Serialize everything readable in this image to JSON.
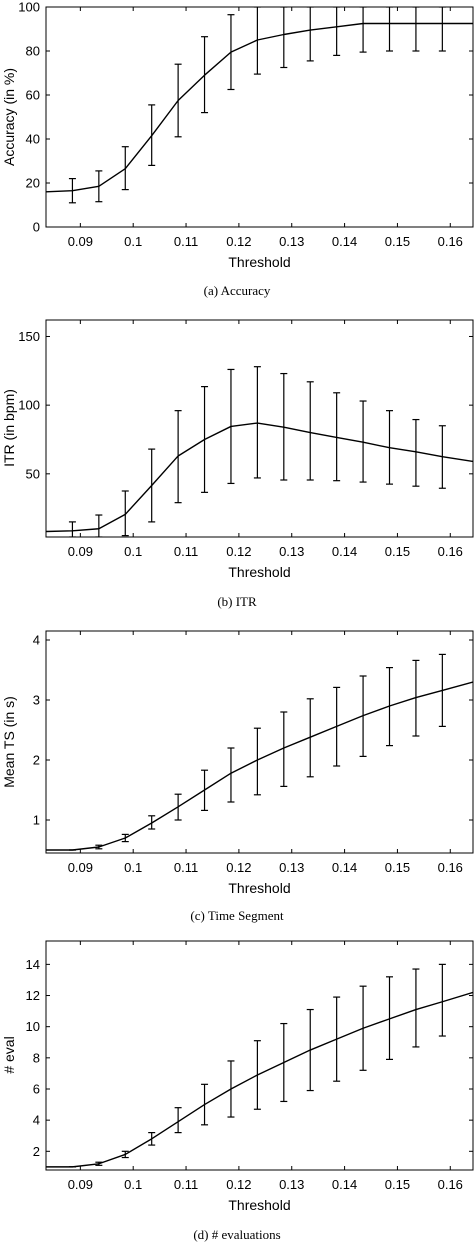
{
  "chart_data": [
    {
      "type": "line",
      "caption": "(a)  Accuracy",
      "xlabel": "Threshold",
      "ylabel": "Accuracy (in %)",
      "xlim": [
        0.0835,
        0.1643
      ],
      "ylim": [
        0,
        100
      ],
      "xticks": [
        0.09,
        0.1,
        0.11,
        0.12,
        0.13,
        0.14,
        0.15,
        0.16
      ],
      "xtick_labels": [
        "0.09",
        "0.1",
        "0.11",
        "0.12",
        "0.13",
        "0.14",
        "0.15",
        "0.16"
      ],
      "yticks": [
        0,
        20,
        40,
        60,
        80,
        100
      ],
      "ytick_labels": [
        "0",
        "20",
        "40",
        "60",
        "80",
        "100"
      ],
      "series": [
        {
          "x": [
            0.0835,
            0.0885,
            0.0935,
            0.0985,
            0.1035,
            0.1085,
            0.1135,
            0.1185,
            0.1235,
            0.1285,
            0.1335,
            0.1385,
            0.1435,
            0.1485,
            0.1535,
            0.1585,
            0.1643
          ],
          "y": [
            16,
            16.5,
            18.5,
            26.5,
            41.5,
            57.5,
            69,
            79.5,
            85,
            87.5,
            89.5,
            91,
            92.5,
            92.5,
            92.5,
            92.5,
            92.5
          ]
        }
      ],
      "error_bars": {
        "x": [
          0.0885,
          0.0935,
          0.0985,
          0.1035,
          0.1085,
          0.1135,
          0.1185,
          0.1235,
          0.1285,
          0.1335,
          0.1385,
          0.1435,
          0.1485,
          0.1535,
          0.1585
        ],
        "low": [
          11,
          11.5,
          17,
          28,
          41,
          52,
          62.5,
          69.5,
          72.5,
          75.5,
          78,
          79.5,
          80,
          80,
          80
        ],
        "high": [
          22,
          25.5,
          36.5,
          55.5,
          74,
          86.5,
          96.5,
          100,
          100,
          100,
          100,
          100,
          100,
          100,
          100
        ]
      }
    },
    {
      "type": "line",
      "caption": "(b)  ITR",
      "xlabel": "Threshold",
      "ylabel": "ITR (in bpm)",
      "xlim": [
        0.0835,
        0.1643
      ],
      "ylim": [
        4,
        162
      ],
      "xticks": [
        0.09,
        0.1,
        0.11,
        0.12,
        0.13,
        0.14,
        0.15,
        0.16
      ],
      "xtick_labels": [
        "0.09",
        "0.1",
        "0.11",
        "0.12",
        "0.13",
        "0.14",
        "0.15",
        "0.16"
      ],
      "yticks": [
        50,
        100,
        150
      ],
      "ytick_labels": [
        "50",
        "100",
        "150"
      ],
      "series": [
        {
          "x": [
            0.0835,
            0.0885,
            0.0935,
            0.0985,
            0.1035,
            0.1085,
            0.1135,
            0.1185,
            0.1235,
            0.1285,
            0.1335,
            0.1385,
            0.1435,
            0.1485,
            0.1535,
            0.1585,
            0.1643
          ],
          "y": [
            8,
            8.5,
            10,
            20.5,
            41.5,
            63,
            75,
            84.5,
            87,
            84,
            80,
            76.5,
            73,
            69,
            66,
            62.5,
            59
          ]
        }
      ],
      "error_bars": {
        "x": [
          0.0885,
          0.0935,
          0.0985,
          0.1035,
          0.1085,
          0.1135,
          0.1185,
          0.1235,
          0.1285,
          0.1335,
          0.1385,
          0.1435,
          0.1485,
          0.1535,
          0.1585
        ],
        "low": [
          4,
          4,
          5,
          15,
          29,
          36.5,
          43,
          47,
          45.5,
          45.5,
          45,
          44,
          42.5,
          41,
          39.5
        ],
        "high": [
          15,
          20,
          37.5,
          68,
          96,
          113.5,
          126,
          128,
          123,
          117,
          109,
          103,
          96,
          89.5,
          85
        ]
      }
    },
    {
      "type": "line",
      "caption": "(c)  Time Segment",
      "xlabel": "Threshold",
      "ylabel": "Mean TS (in s)",
      "xlim": [
        0.0835,
        0.1643
      ],
      "ylim": [
        0.45,
        4.15
      ],
      "xticks": [
        0.09,
        0.1,
        0.11,
        0.12,
        0.13,
        0.14,
        0.15,
        0.16
      ],
      "xtick_labels": [
        "0.09",
        "0.1",
        "0.11",
        "0.12",
        "0.13",
        "0.14",
        "0.15",
        "0.16"
      ],
      "yticks": [
        1,
        2,
        3,
        4
      ],
      "ytick_labels": [
        "1",
        "2",
        "3",
        "4"
      ],
      "series": [
        {
          "x": [
            0.0835,
            0.0885,
            0.0935,
            0.0985,
            0.1035,
            0.1085,
            0.1135,
            0.1185,
            0.1235,
            0.1285,
            0.1335,
            0.1385,
            0.1435,
            0.1485,
            0.1535,
            0.1585,
            0.1643
          ],
          "y": [
            0.5,
            0.5,
            0.55,
            0.7,
            0.95,
            1.22,
            1.5,
            1.78,
            2.0,
            2.2,
            2.38,
            2.56,
            2.74,
            2.9,
            3.04,
            3.16,
            3.3
          ]
        }
      ],
      "error_bars": {
        "x": [
          0.0885,
          0.0935,
          0.0985,
          0.1035,
          0.1085,
          0.1135,
          0.1185,
          0.1235,
          0.1285,
          0.1335,
          0.1385,
          0.1435,
          0.1485,
          0.1535,
          0.1585
        ],
        "low": [
          0.5,
          0.52,
          0.64,
          0.85,
          1.0,
          1.16,
          1.3,
          1.42,
          1.56,
          1.72,
          1.9,
          2.06,
          2.24,
          2.4,
          2.56
        ],
        "high": [
          0.5,
          0.58,
          0.76,
          1.07,
          1.43,
          1.83,
          2.2,
          2.53,
          2.8,
          3.02,
          3.21,
          3.4,
          3.54,
          3.66,
          3.76
        ]
      }
    },
    {
      "type": "line",
      "caption": "(d)  # evaluations",
      "xlabel": "Threshold",
      "ylabel": "# eval",
      "xlim": [
        0.0835,
        0.1643
      ],
      "ylim": [
        0.8,
        15.5
      ],
      "xticks": [
        0.09,
        0.1,
        0.11,
        0.12,
        0.13,
        0.14,
        0.15,
        0.16
      ],
      "xtick_labels": [
        "0.09",
        "0.1",
        "0.11",
        "0.12",
        "0.13",
        "0.14",
        "0.15",
        "0.16"
      ],
      "yticks": [
        2,
        4,
        6,
        8,
        10,
        12,
        14
      ],
      "ytick_labels": [
        "2",
        "4",
        "6",
        "8",
        "10",
        "12",
        "14"
      ],
      "series": [
        {
          "x": [
            0.0835,
            0.0885,
            0.0935,
            0.0985,
            0.1035,
            0.1085,
            0.1135,
            0.1185,
            0.1235,
            0.1285,
            0.1335,
            0.1385,
            0.1435,
            0.1485,
            0.1535,
            0.1585,
            0.1643
          ],
          "y": [
            1,
            1,
            1.2,
            1.8,
            2.8,
            3.9,
            5.0,
            6.0,
            6.9,
            7.7,
            8.5,
            9.2,
            9.9,
            10.5,
            11.1,
            11.6,
            12.2
          ]
        }
      ],
      "error_bars": {
        "x": [
          0.0885,
          0.0935,
          0.0985,
          0.1035,
          0.1085,
          0.1135,
          0.1185,
          0.1235,
          0.1285,
          0.1335,
          0.1385,
          0.1435,
          0.1485,
          0.1535,
          0.1585
        ],
        "low": [
          1,
          1.1,
          1.6,
          2.4,
          3.2,
          3.7,
          4.2,
          4.7,
          5.2,
          5.9,
          6.5,
          7.2,
          7.9,
          8.7,
          9.4
        ],
        "high": [
          1,
          1.3,
          2.0,
          3.2,
          4.8,
          6.3,
          7.8,
          9.1,
          10.2,
          11.1,
          11.9,
          12.6,
          13.2,
          13.7,
          14.0
        ]
      }
    }
  ]
}
